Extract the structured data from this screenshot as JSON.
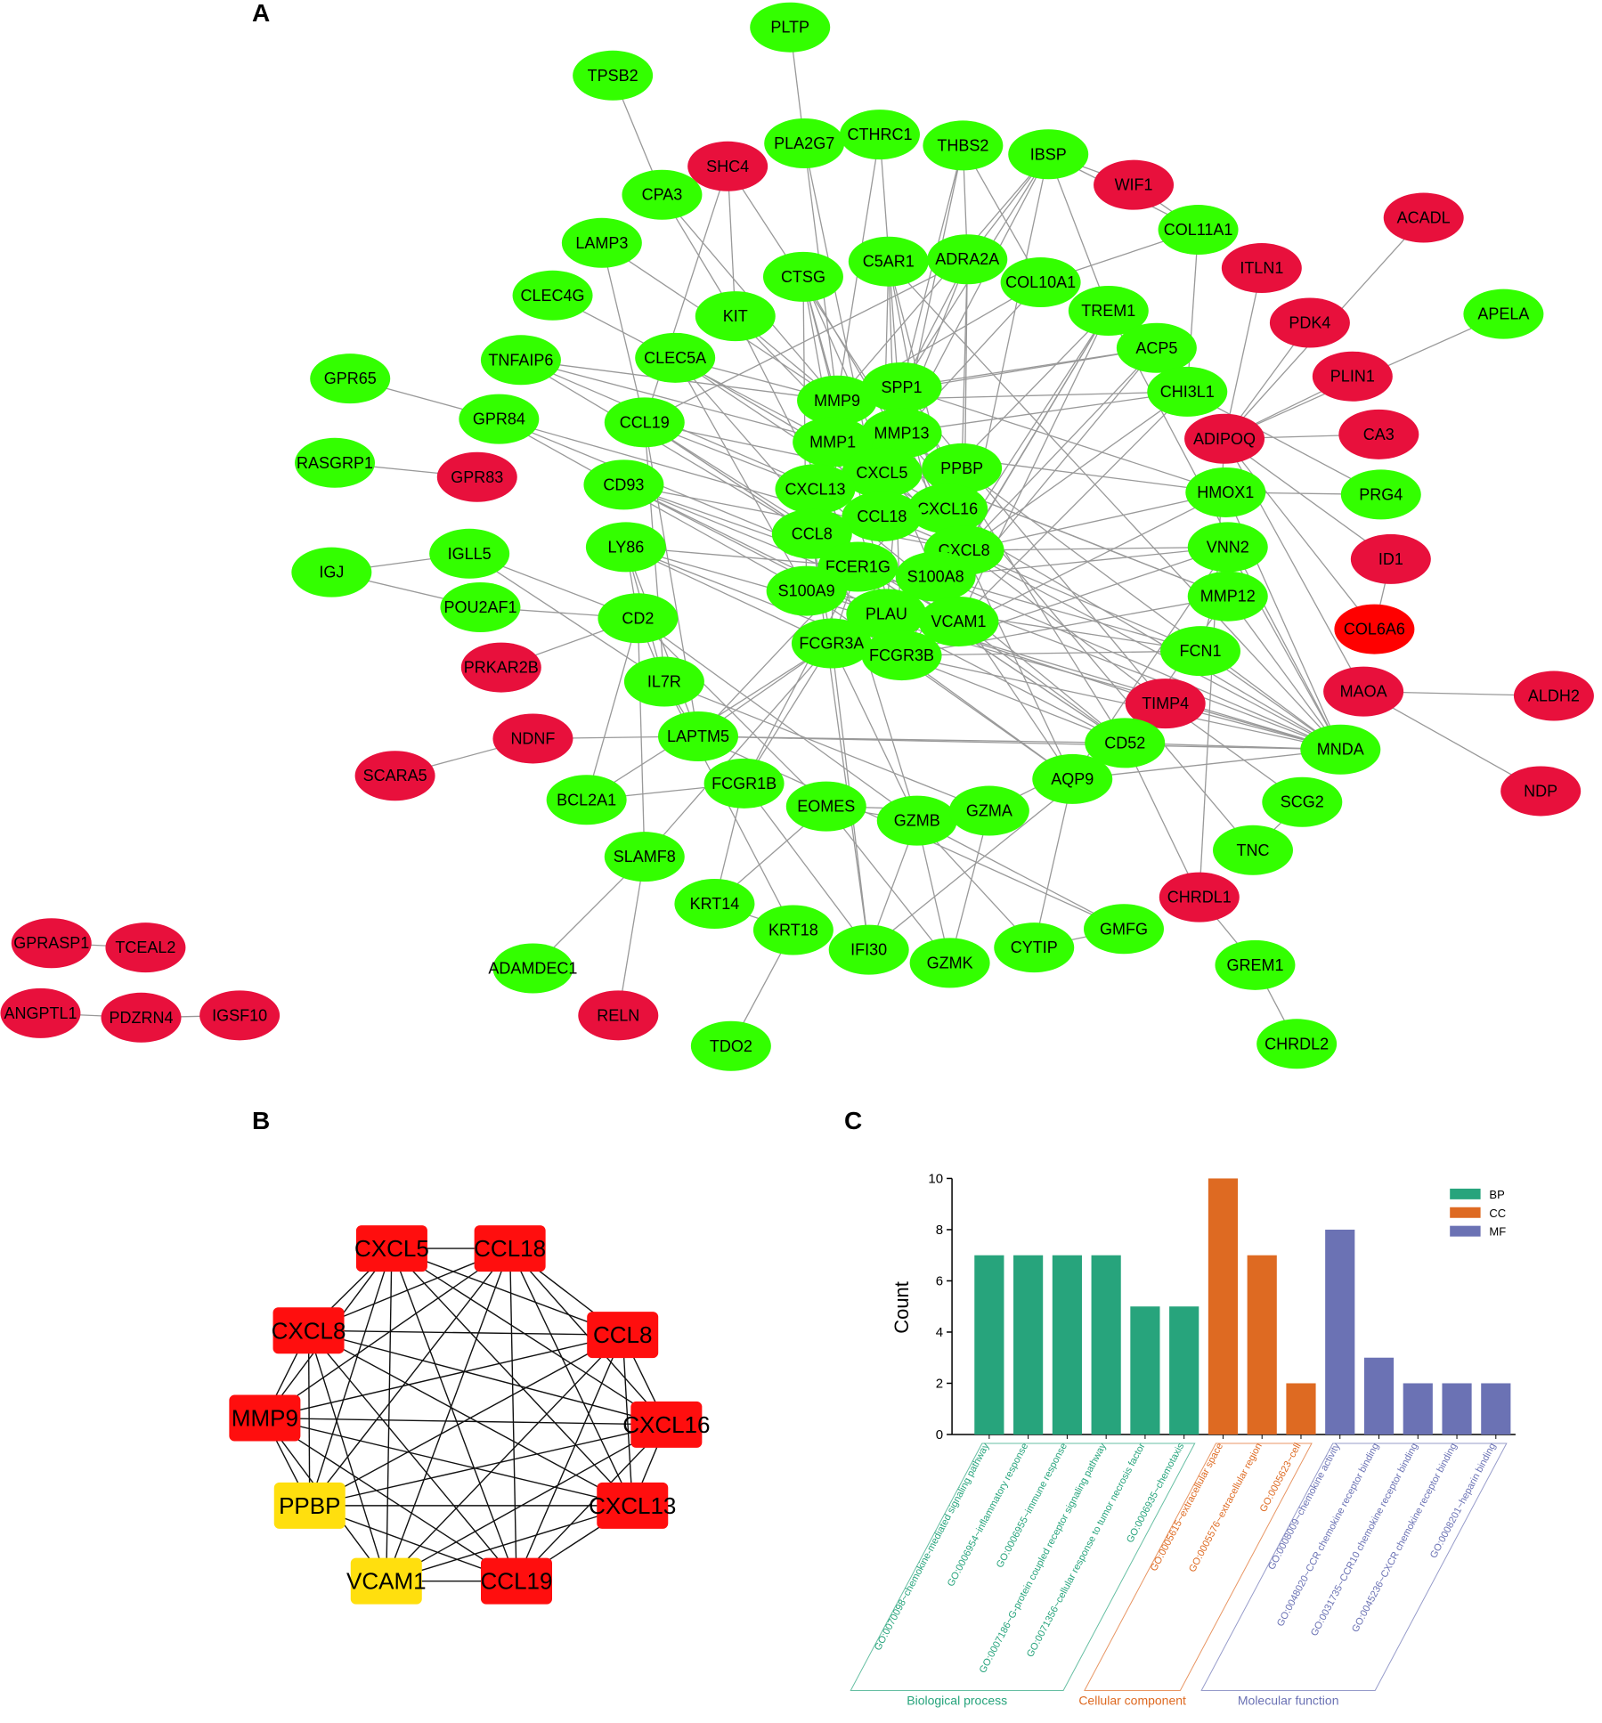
{
  "panels": {
    "a": "A",
    "b": "B",
    "c": "C"
  },
  "colors": {
    "up": "#e8103c",
    "down": "#33ff00",
    "hub_red": "#ff0e0e",
    "hub_yellow": "#ffdf0e",
    "edge": "#999999",
    "BP": "#27a47c",
    "CC": "#de6a22",
    "MF": "#6b72b4"
  },
  "network_a": {
    "nodes": [
      {
        "id": "PLTP",
        "c": "down"
      },
      {
        "id": "TPSB2",
        "c": "down"
      },
      {
        "id": "PLA2G7",
        "c": "down"
      },
      {
        "id": "CTHRC1",
        "c": "down"
      },
      {
        "id": "THBS2",
        "c": "down"
      },
      {
        "id": "IBSP",
        "c": "down"
      },
      {
        "id": "SHC4",
        "c": "up"
      },
      {
        "id": "CPA3",
        "c": "down"
      },
      {
        "id": "WIF1",
        "c": "up"
      },
      {
        "id": "COL11A1",
        "c": "down"
      },
      {
        "id": "ACADL",
        "c": "up"
      },
      {
        "id": "LAMP3",
        "c": "down"
      },
      {
        "id": "C5AR1",
        "c": "down"
      },
      {
        "id": "ADRA2A",
        "c": "down"
      },
      {
        "id": "COL10A1",
        "c": "down"
      },
      {
        "id": "CTSG",
        "c": "down"
      },
      {
        "id": "ITLN1",
        "c": "up"
      },
      {
        "id": "CLEC4G",
        "c": "down"
      },
      {
        "id": "KIT",
        "c": "down"
      },
      {
        "id": "TREM1",
        "c": "down"
      },
      {
        "id": "PDK4",
        "c": "up"
      },
      {
        "id": "APELA",
        "c": "down"
      },
      {
        "id": "TNFAIP6",
        "c": "down"
      },
      {
        "id": "CLEC5A",
        "c": "down"
      },
      {
        "id": "ACP5",
        "c": "down"
      },
      {
        "id": "GPR65",
        "c": "down"
      },
      {
        "id": "PLIN1",
        "c": "up"
      },
      {
        "id": "SPP1",
        "c": "down"
      },
      {
        "id": "MMP9",
        "c": "down"
      },
      {
        "id": "CHI3L1",
        "c": "down"
      },
      {
        "id": "GPR84",
        "c": "down"
      },
      {
        "id": "CCL19",
        "c": "down"
      },
      {
        "id": "MMP13",
        "c": "down"
      },
      {
        "id": "ADIPOQ",
        "c": "up"
      },
      {
        "id": "CA3",
        "c": "up"
      },
      {
        "id": "MMP1",
        "c": "down"
      },
      {
        "id": "RASGRP1",
        "c": "down"
      },
      {
        "id": "GPR83",
        "c": "up"
      },
      {
        "id": "PPBP",
        "c": "down"
      },
      {
        "id": "CXCL5",
        "c": "down"
      },
      {
        "id": "CD93",
        "c": "down"
      },
      {
        "id": "CXCL13",
        "c": "down"
      },
      {
        "id": "HMOX1",
        "c": "down"
      },
      {
        "id": "PRG4",
        "c": "down"
      },
      {
        "id": "CXCL16",
        "c": "down"
      },
      {
        "id": "CCL18",
        "c": "down"
      },
      {
        "id": "CCL8",
        "c": "down"
      },
      {
        "id": "LY86",
        "c": "down"
      },
      {
        "id": "CXCL8",
        "c": "down"
      },
      {
        "id": "VNN2",
        "c": "down"
      },
      {
        "id": "IGLL5",
        "c": "down"
      },
      {
        "id": "ID1",
        "c": "up"
      },
      {
        "id": "IGJ",
        "c": "down"
      },
      {
        "id": "FCER1G",
        "c": "down"
      },
      {
        "id": "S100A8",
        "c": "down"
      },
      {
        "id": "S100A9",
        "c": "down"
      },
      {
        "id": "MMP12",
        "c": "down"
      },
      {
        "id": "POU2AF1",
        "c": "down"
      },
      {
        "id": "CD2",
        "c": "down"
      },
      {
        "id": "PLAU",
        "c": "down"
      },
      {
        "id": "VCAM1",
        "c": "down"
      },
      {
        "id": "COL6A6",
        "c": "up2"
      },
      {
        "id": "FCGR3A",
        "c": "down"
      },
      {
        "id": "FCGR3B",
        "c": "down"
      },
      {
        "id": "FCN1",
        "c": "down"
      },
      {
        "id": "PRKAR2B",
        "c": "up"
      },
      {
        "id": "IL7R",
        "c": "down"
      },
      {
        "id": "MAOA",
        "c": "up"
      },
      {
        "id": "ALDH2",
        "c": "up"
      },
      {
        "id": "TIMP4",
        "c": "up"
      },
      {
        "id": "NDNF",
        "c": "up"
      },
      {
        "id": "LAPTM5",
        "c": "down"
      },
      {
        "id": "CD52",
        "c": "down"
      },
      {
        "id": "MNDA",
        "c": "down"
      },
      {
        "id": "SCARA5",
        "c": "up"
      },
      {
        "id": "FCGR1B",
        "c": "down"
      },
      {
        "id": "AQP9",
        "c": "down"
      },
      {
        "id": "NDP",
        "c": "up"
      },
      {
        "id": "BCL2A1",
        "c": "down"
      },
      {
        "id": "EOMES",
        "c": "down"
      },
      {
        "id": "GZMB",
        "c": "down"
      },
      {
        "id": "GZMA",
        "c": "down"
      },
      {
        "id": "SCG2",
        "c": "down"
      },
      {
        "id": "SLAMF8",
        "c": "down"
      },
      {
        "id": "TNC",
        "c": "down"
      },
      {
        "id": "CHRDL1",
        "c": "up"
      },
      {
        "id": "KRT14",
        "c": "down"
      },
      {
        "id": "GPRASP1",
        "c": "up"
      },
      {
        "id": "TCEAL2",
        "c": "up"
      },
      {
        "id": "KRT18",
        "c": "down"
      },
      {
        "id": "GMFG",
        "c": "down"
      },
      {
        "id": "IFI30",
        "c": "down"
      },
      {
        "id": "CYTIP",
        "c": "down"
      },
      {
        "id": "GZMK",
        "c": "down"
      },
      {
        "id": "GREM1",
        "c": "down"
      },
      {
        "id": "ADAMDEC1",
        "c": "down"
      },
      {
        "id": "ANGPTL1",
        "c": "up"
      },
      {
        "id": "PDZRN4",
        "c": "up"
      },
      {
        "id": "IGSF10",
        "c": "up"
      },
      {
        "id": "RELN",
        "c": "up"
      },
      {
        "id": "TDO2",
        "c": "down"
      },
      {
        "id": "CHRDL2",
        "c": "down"
      }
    ]
  },
  "network_b": {
    "nodes": [
      {
        "id": "CXCL5",
        "c": "hub_red"
      },
      {
        "id": "CCL18",
        "c": "hub_red"
      },
      {
        "id": "CXCL8",
        "c": "hub_red"
      },
      {
        "id": "CCL8",
        "c": "hub_red"
      },
      {
        "id": "MMP9",
        "c": "hub_red"
      },
      {
        "id": "CXCL16",
        "c": "hub_red"
      },
      {
        "id": "PPBP",
        "c": "hub_yellow"
      },
      {
        "id": "CXCL13",
        "c": "hub_red"
      },
      {
        "id": "VCAM1",
        "c": "hub_yellow"
      },
      {
        "id": "CCL19",
        "c": "hub_red"
      }
    ]
  },
  "chart_data": {
    "type": "bar",
    "ylabel": "Count",
    "ylim": [
      0,
      10
    ],
    "yticks": [
      0,
      2,
      4,
      6,
      8,
      10
    ],
    "legend": [
      {
        "name": "BP",
        "color": "#27a47c"
      },
      {
        "name": "CC",
        "color": "#de6a22"
      },
      {
        "name": "MF",
        "color": "#6b72b4"
      }
    ],
    "legend_position": "top-right",
    "groups": [
      "Biological process",
      "Cellular component",
      "Molecular function"
    ],
    "categories": [
      "GO:0070098~chemokine-mediated signaling pathway",
      "GO:0006954~inflammatory response",
      "GO:0006955~immune response",
      "GO:0007186~G-protein coupled receptor signaling pathway",
      "GO:0071356~cellular response to tumor necrosis factor",
      "GO:0006935~chemotaxis",
      "GO:0005615~extracellular space",
      "GO:0005576~extracellular region",
      "GO:0005623~cell",
      "GO:0008009~chemokine activity",
      "GO:0048020~CCR chemokine receptor binding",
      "GO:0031735~CCR10 chemokine receptor binding",
      "GO:0045236~CXCR chemokine receptor binding",
      "GO:0008201~heparin binding"
    ],
    "category_group": [
      "BP",
      "BP",
      "BP",
      "BP",
      "BP",
      "BP",
      "CC",
      "CC",
      "CC",
      "MF",
      "MF",
      "MF",
      "MF",
      "MF"
    ],
    "values": [
      7,
      7,
      7,
      7,
      5,
      5,
      10,
      7,
      2,
      8,
      3,
      2,
      2,
      2
    ]
  }
}
